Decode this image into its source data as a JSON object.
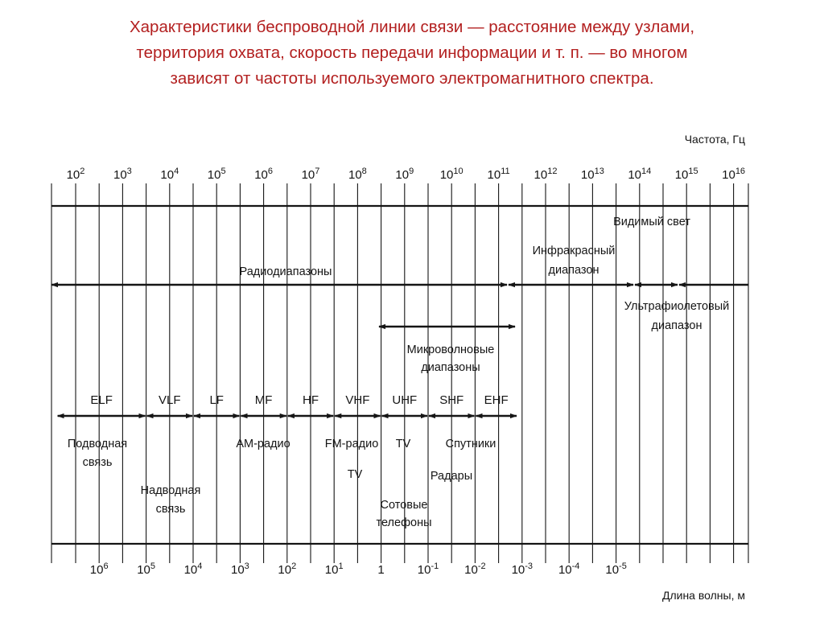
{
  "caption": {
    "line1": "Характеристики беспроводной линии связи — расстояние между узлами,",
    "line2": "территория охвата, скорость передачи информации и т. п. — во многом",
    "line3": "зависят от частоты используемого электромагнитного спектра."
  },
  "frequency_axis": {
    "title": "Частота, Гц",
    "ticks": [
      {
        "base": "10",
        "exp": "2"
      },
      {
        "base": "10",
        "exp": "3"
      },
      {
        "base": "10",
        "exp": "4"
      },
      {
        "base": "10",
        "exp": "5"
      },
      {
        "base": "10",
        "exp": "6"
      },
      {
        "base": "10",
        "exp": "7"
      },
      {
        "base": "10",
        "exp": "8"
      },
      {
        "base": "10",
        "exp": "9"
      },
      {
        "base": "10",
        "exp": "10"
      },
      {
        "base": "10",
        "exp": "11"
      },
      {
        "base": "10",
        "exp": "12"
      },
      {
        "base": "10",
        "exp": "13"
      },
      {
        "base": "10",
        "exp": "14"
      },
      {
        "base": "10",
        "exp": "15"
      },
      {
        "base": "10",
        "exp": "16"
      }
    ]
  },
  "wavelength_axis": {
    "title": "Длина волны, м",
    "ticks": [
      {
        "base": "10",
        "exp": "6",
        "freq": 2.5
      },
      {
        "base": "10",
        "exp": "5",
        "freq": 3.5
      },
      {
        "base": "10",
        "exp": "4",
        "freq": 4.5
      },
      {
        "base": "10",
        "exp": "3",
        "freq": 5.5
      },
      {
        "base": "10",
        "exp": "2",
        "freq": 6.5
      },
      {
        "base": "10",
        "exp": "1",
        "freq": 7.5
      },
      {
        "base": "1",
        "exp": "",
        "freq": 8.5
      },
      {
        "base": "10",
        "exp": "-1",
        "freq": 9.5
      },
      {
        "base": "10",
        "exp": "-2",
        "freq": 10.5
      },
      {
        "base": "10",
        "exp": "-3",
        "freq": 11.5
      },
      {
        "base": "10",
        "exp": "-4",
        "freq": 12.5
      },
      {
        "base": "10",
        "exp": "-5",
        "freq": 13.5
      }
    ]
  },
  "ranges": {
    "visible_light": {
      "label": "Видимый свет",
      "from": 14,
      "to": 15
    },
    "infrared": {
      "label1": "Инфракрасный",
      "label2": "диапазон",
      "from": 11.3,
      "to": 14
    },
    "radio": {
      "label": "Радиодиапазоны",
      "from": 1.6,
      "to": 11.3
    },
    "ultraviolet": {
      "label1": "Ультрафиолетовый",
      "label2": "диапазон",
      "from": 15,
      "to": 16.4
    },
    "microwave": {
      "label1": "Микроволновые",
      "label2": "диапазоны",
      "from": 8.7,
      "to": 11.4
    }
  },
  "bands": [
    {
      "label": "ELF",
      "from": 1.6,
      "to": 3.5
    },
    {
      "label": "VLF",
      "from": 3.5,
      "to": 4.5
    },
    {
      "label": "LF",
      "from": 4.5,
      "to": 5.5
    },
    {
      "label": "MF",
      "from": 5.5,
      "to": 6.5
    },
    {
      "label": "HF",
      "from": 6.5,
      "to": 7.5
    },
    {
      "label": "VHF",
      "from": 7.5,
      "to": 8.5
    },
    {
      "label": "UHF",
      "from": 8.5,
      "to": 9.5
    },
    {
      "label": "SHF",
      "from": 9.5,
      "to": 10.5
    },
    {
      "label": "EHF",
      "from": 10.5,
      "to": 11.4
    }
  ],
  "applications": {
    "submarine_line1": "Подводная",
    "submarine_line2": "связь",
    "surface_line1": "Надводная",
    "surface_line2": "связь",
    "am_radio": "AM-радио",
    "fm_radio": "FM-радио",
    "tv_1": "TV",
    "tv_2": "TV",
    "satellites": "Спутники",
    "radars": "Радары",
    "cellular_line1": "Сотовые",
    "cellular_line2": "телефоны"
  },
  "colors": {
    "caption": "#b32020",
    "lines": "#151515"
  }
}
